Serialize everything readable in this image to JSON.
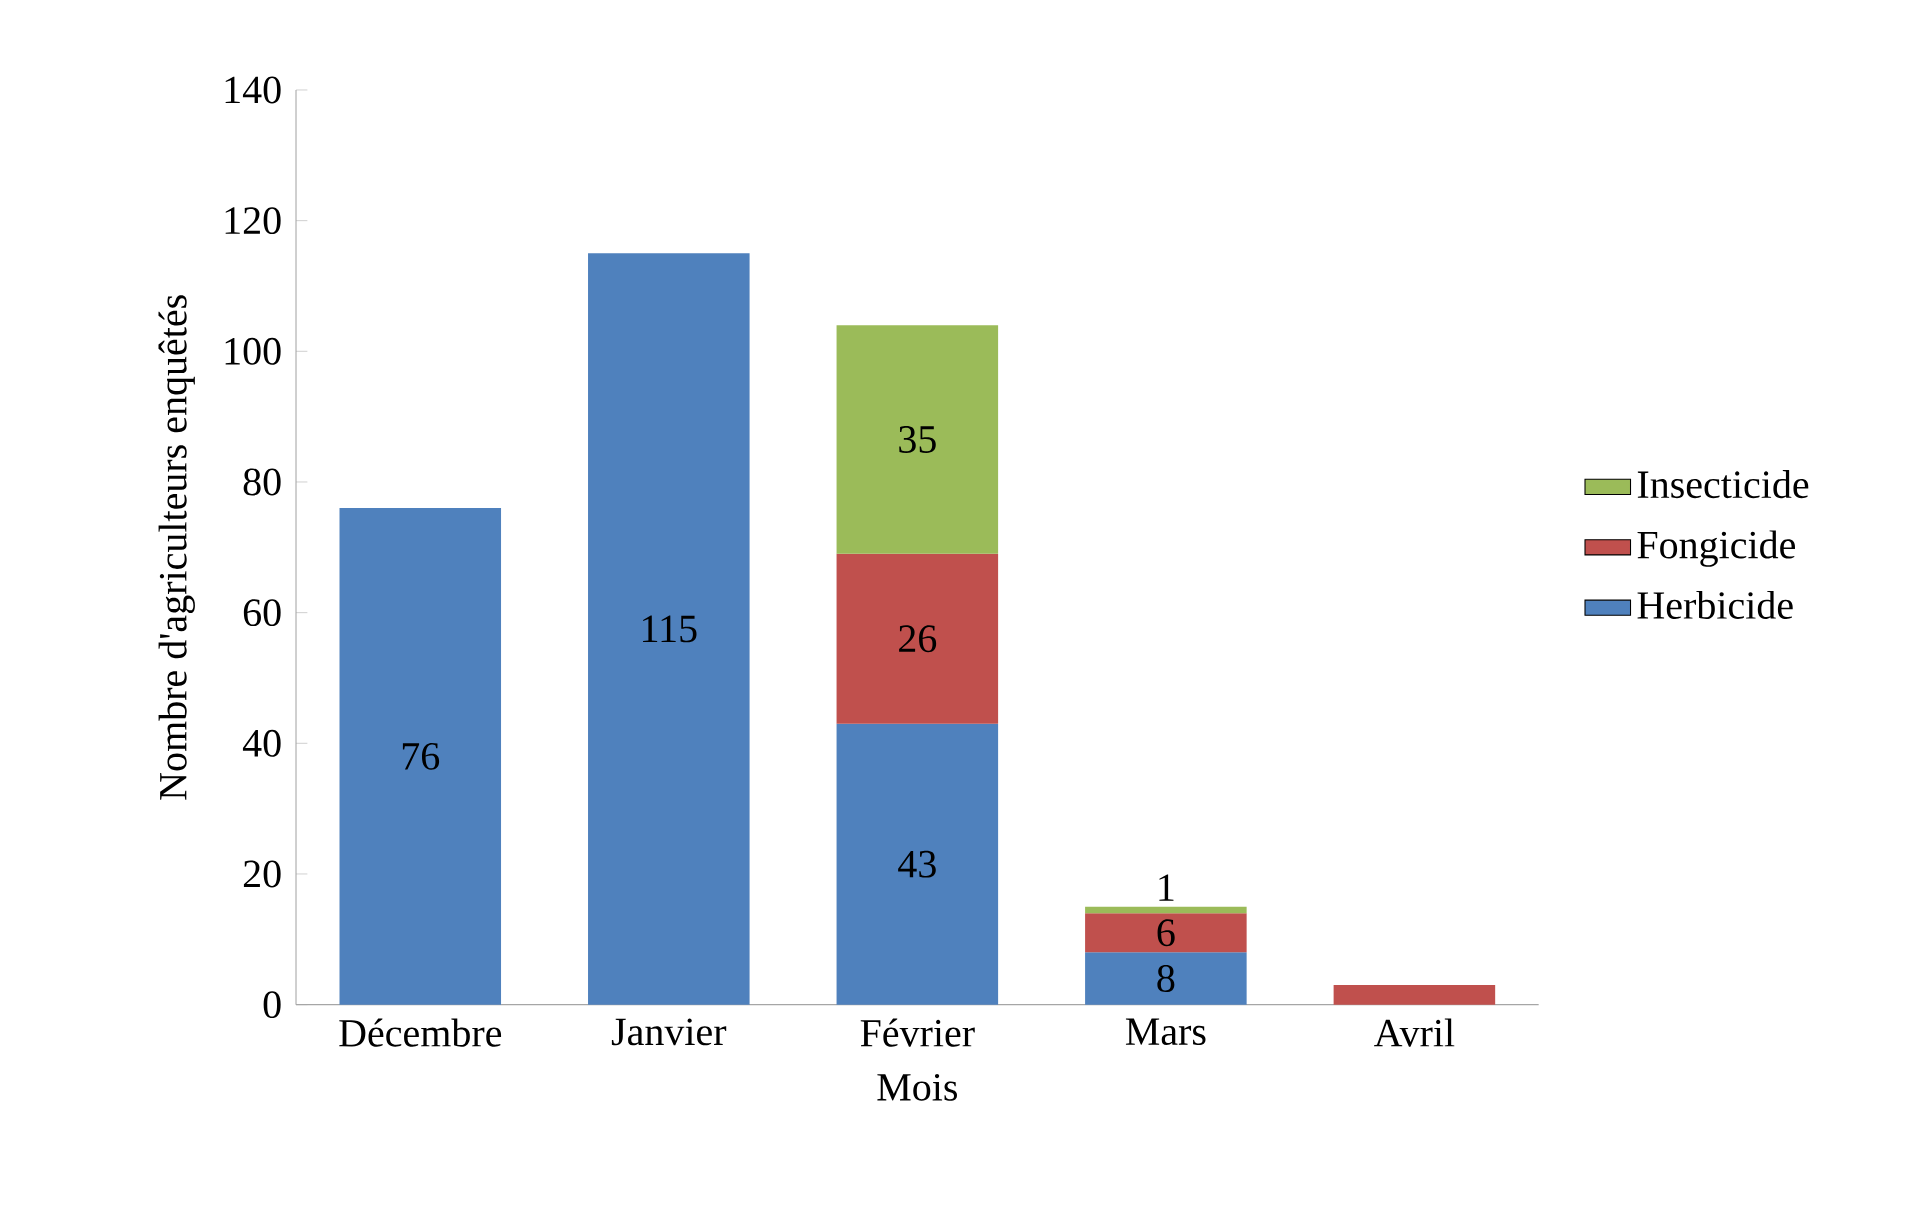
{
  "chart_data": {
    "type": "bar",
    "stacked": true,
    "categories": [
      "Décembre",
      "Janvier",
      "Février",
      "Mars",
      "Avril"
    ],
    "xlabel": "Mois",
    "ylabel": "Nombre d'agriculteurs enquêtés",
    "ylim": [
      0,
      140
    ],
    "yticks": [
      0,
      20,
      40,
      60,
      80,
      100,
      120,
      140
    ],
    "legend": "right",
    "grid": false,
    "series": [
      {
        "name": "Herbicide",
        "color": "#4f81bd",
        "values": [
          76,
          115,
          43,
          8,
          null
        ],
        "value_labels": [
          "76",
          "115",
          "43",
          "8",
          null
        ]
      },
      {
        "name": "Fongicide",
        "color": "#c0504d",
        "values": [
          null,
          null,
          26,
          6,
          3
        ],
        "value_labels": [
          null,
          null,
          "26",
          "6",
          null
        ]
      },
      {
        "name": "Insecticide",
        "color": "#9bbb59",
        "values": [
          null,
          null,
          35,
          1,
          null
        ],
        "value_labels": [
          null,
          null,
          "35",
          "1",
          null
        ]
      }
    ]
  }
}
